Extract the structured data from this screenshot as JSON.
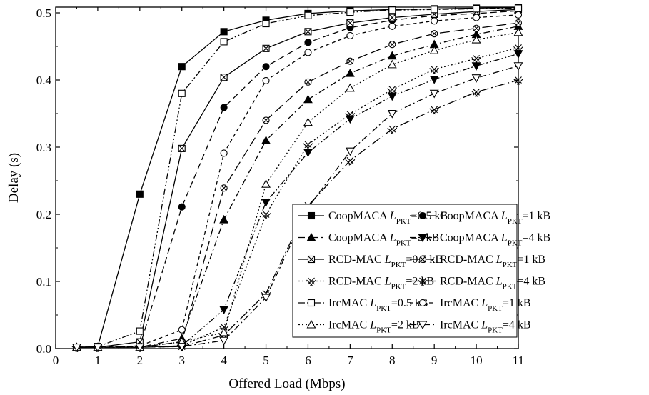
{
  "chart_data": {
    "type": "line",
    "title": "",
    "xlabel": "Offered Load (Mbps)",
    "ylabel": "Delay (s)",
    "xlim": [
      0,
      11
    ],
    "ylim": [
      0,
      0.5
    ],
    "xticks": [
      "0",
      "1",
      "2",
      "3",
      "4",
      "5",
      "6",
      "7",
      "8",
      "9",
      "10",
      "11"
    ],
    "yticks": [
      "0.0",
      "0.1",
      "0.2",
      "0.3",
      "0.4",
      "0.5"
    ],
    "grid": false,
    "legend_position": "bottom-right",
    "x": [
      0.5,
      1,
      2,
      3,
      4,
      5,
      6,
      7,
      8,
      9,
      10,
      11
    ],
    "series": [
      {
        "name": "CoopMACA",
        "param": "L",
        "sub": "PKT",
        "size": "=0.5 kB",
        "marker": "square-filled",
        "dash": "solid",
        "values": [
          0.002,
          0.003,
          0.23,
          0.42,
          0.472,
          0.489,
          0.499,
          0.503,
          0.505,
          0.506,
          0.507,
          0.508
        ]
      },
      {
        "name": "CoopMACA",
        "param": "L",
        "sub": "PKT",
        "size": "=1 kB",
        "marker": "circle-filled",
        "dash": "dash",
        "values": [
          0.002,
          0.002,
          0.003,
          0.211,
          0.359,
          0.42,
          0.456,
          0.478,
          0.489,
          0.496,
          0.499,
          0.503
        ]
      },
      {
        "name": "CoopMACA",
        "param": "L",
        "sub": "PKT",
        "size": "=2 kB",
        "marker": "triangle-up-filled",
        "dash": "dashdot",
        "values": [
          0.002,
          0.002,
          0.002,
          0.015,
          0.192,
          0.31,
          0.371,
          0.41,
          0.436,
          0.453,
          0.468,
          0.48
        ]
      },
      {
        "name": "CoopMACA",
        "param": "L",
        "sub": "PKT",
        "size": "=4 kB",
        "marker": "triangle-down-filled",
        "dash": "dashdotdot",
        "values": [
          0.002,
          0.002,
          0.002,
          0.004,
          0.058,
          0.218,
          0.292,
          0.342,
          0.376,
          0.401,
          0.421,
          0.439
        ]
      },
      {
        "name": "RCD-MAC",
        "param": "L",
        "sub": "PKT",
        "size": "=0.5 kB",
        "marker": "square-x",
        "dash": "solid",
        "values": [
          0.002,
          0.002,
          0.01,
          0.298,
          0.404,
          0.447,
          0.472,
          0.485,
          0.493,
          0.498,
          0.502,
          0.505
        ]
      },
      {
        "name": "RCD-MAC",
        "param": "L",
        "sub": "PKT",
        "size": "=1 kB",
        "marker": "circle-x",
        "dash": "longdash",
        "values": [
          0.002,
          0.002,
          0.002,
          0.01,
          0.239,
          0.34,
          0.397,
          0.428,
          0.453,
          0.469,
          0.477,
          0.485
        ]
      },
      {
        "name": "RCD-MAC",
        "param": "L",
        "sub": "PKT",
        "size": "=2 kB",
        "marker": "double-x",
        "dash": "dot",
        "values": [
          0.002,
          0.002,
          0.002,
          0.004,
          0.032,
          0.2,
          0.304,
          0.349,
          0.386,
          0.416,
          0.432,
          0.448
        ]
      },
      {
        "name": "RCD-MAC",
        "param": "L",
        "sub": "PKT",
        "size": "=4 kB",
        "marker": "double-x",
        "dash": "longdashdot",
        "values": [
          0.002,
          0.002,
          0.002,
          0.003,
          0.02,
          0.082,
          0.213,
          0.28,
          0.327,
          0.356,
          0.382,
          0.4
        ]
      },
      {
        "name": "IrcMAC",
        "param": "L",
        "sub": "PKT",
        "size": "=0.5 kB",
        "marker": "square-open",
        "dash": "dashdotdot",
        "values": [
          0.002,
          0.003,
          0.026,
          0.38,
          0.457,
          0.484,
          0.496,
          0.501,
          0.504,
          0.505,
          0.506,
          0.507
        ]
      },
      {
        "name": "IrcMAC",
        "param": "L",
        "sub": "PKT",
        "size": "=1 kB",
        "marker": "circle-open",
        "dash": "shortdash",
        "values": [
          0.002,
          0.002,
          0.004,
          0.028,
          0.291,
          0.399,
          0.441,
          0.466,
          0.48,
          0.488,
          0.493,
          0.497
        ]
      },
      {
        "name": "IrcMAC",
        "param": "L",
        "sub": "PKT",
        "size": "=2 kB",
        "marker": "triangle-up-open",
        "dash": "dot",
        "values": [
          0.002,
          0.002,
          0.002,
          0.01,
          0.024,
          0.245,
          0.337,
          0.388,
          0.423,
          0.444,
          0.46,
          0.471
        ]
      },
      {
        "name": "IrcMAC",
        "param": "L",
        "sub": "PKT",
        "size": "=4 kB",
        "marker": "triangle-down-open",
        "dash": "dashdot",
        "values": [
          0.002,
          0.002,
          0.002,
          0.003,
          0.012,
          0.076,
          0.21,
          0.294,
          0.35,
          0.38,
          0.403,
          0.421
        ]
      }
    ]
  }
}
